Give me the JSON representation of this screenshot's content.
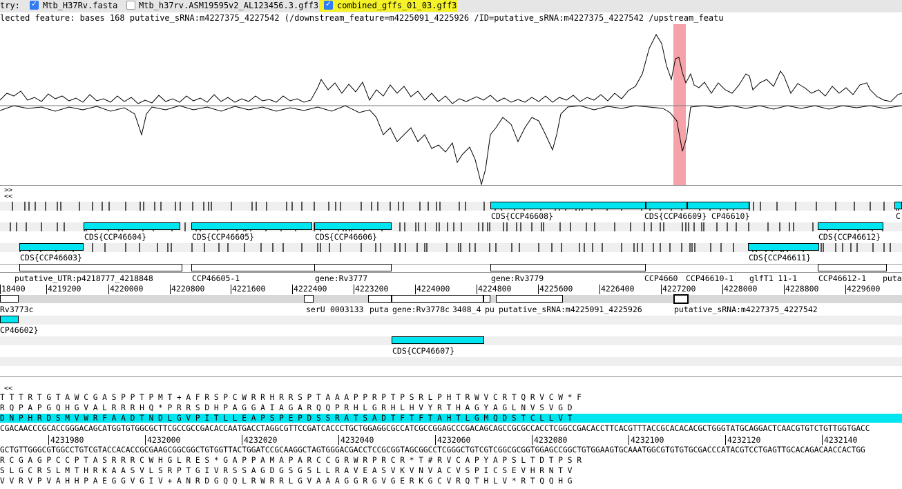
{
  "entry_bar": {
    "prefix": "try:",
    "entries": [
      {
        "label": "Mtb_H37Rv.fasta",
        "checked": true
      },
      {
        "label": "Mtb_h37rv.ASM19595v2_AL123456.3.gff3",
        "checked": false
      },
      {
        "label": "combined_gffs_01_03.gff3",
        "checked": true
      }
    ]
  },
  "selected_feature_text": "lected feature:  bases 168  putative_sRNA:m4227375_4227542  (/downstream_feature=m4225091_4225926 /ID=putative_sRNA:m4227375_4227542 /upstream_featu",
  "nav": {
    "forward": ">>",
    "back": "<<",
    "back2": "<<"
  },
  "feature_labels": {
    "ccp46608": "CDS{CCP46608}",
    "ccp46609": "CDS{CCP46609}",
    "ccp46610": "CP46610}",
    "ccp46604": "CDS{CCP46604}",
    "ccp46605": "CDS{CCP46605}",
    "ccp46606": "CDS{CCP46606}",
    "ccp46612": "CDS{CCP46612}",
    "ccp46603": "CDS{CCP46603}",
    "ccp46611": "CDS{CCP46611}",
    "edge_c": "C",
    "utr": "putative_UTR:p4218777_4218848",
    "ccp46605_1": "CCP46605-1",
    "rv3777": "gene:Rv3777",
    "rv3779": "gene:Rv3779",
    "ccp4660x": "CCP4660",
    "ccp46610_1": "CCP46610-1",
    "glft1": "glfT1 11-1",
    "ccp46612_1": "CCP46612-1",
    "puta_edge": "puta",
    "rv3773c": "Rv3773c",
    "seru": "serU",
    "s3133": "0003133",
    "puta2": "puta",
    "rv3778c": "gene:Rv3778c",
    "s408": "3408_4",
    "pu": "pu",
    "srna1": "putative_sRNA:m4225091_4225926",
    "srna2": "putative_sRNA:m4227375_4227542",
    "ccp46602": "CP46602}",
    "ccp46607": "CDS{CCP46607}"
  },
  "ruler": [
    "18400",
    "4219200",
    "4220000",
    "4220800",
    "4221600",
    "4222400",
    "4223200",
    "4224000",
    "4224800",
    "4225600",
    "4226400",
    "4227200",
    "4228000",
    "4228800",
    "4229600"
  ],
  "sequence": {
    "frame1": "T  T  T  R  T  G  T  A  W  C  G  A  S  P  P  T  P  M  T  +  A  F  R  S  P  C  W  R  R  H  R  R  S  P  T  A  A  A  P  P  R  P  T  P  S  R  L  P  H  T  R  W  V  C  R  T  Q  R  V  C  W  *  F",
    "frame2": " R  Q  P  A  P  G  Q  H  G  V  A  L  R  R  R  H  Q  *  P  R  R  S  D  H  P  A  G  G  A  I  A  G  A  R  Q  Q  P  R  H  L  G  R  H  L  H  V  Y  R  T  H  A  G  Y  A  G  L  N  V  S  V  G  D",
    "frame3": "  D  N  P  H  R  D  S  M  V  W  R  F  A  A  D  T  N  D  L  G  V  P  I  T  L  L  E  A  P  S  P  E  P  D  S  S  R  A  T  S  A  D  T  F  T  F  T  A  H  T  L  G  M  Q  D  S  T  C  L  L  V  T",
    "dna_fwd": "CGACAACCCGCACCGGGACAGCATGGTGTGGCGCTTCGCCGCCGACACCAATGACCTAGGCGTTCCGATCACCCTGCTGGAGGCGCCATCGCCGGAGCCCGACAGCAGCCGCGCCACCTCGGCCGACACCTTCACGTTTACCGCACACACGCTGGGTATGCAGGACTCAACGTGTCTGTTGGTGACC",
    "dna_rev": "GCTGTTGGGCGTGGCCTGTCGTACCACACCGCGAAGCGGCGGCTGTGGTTACTGGATCCGCAAGGCTAGTGGGACGACCTCCGCGGTAGCGGCCTCGGGCTGTCGTCGGCGCGGTGGAGCCGGCTGTGGAAGTGCAAATGGCGTGTGTGCGACCCATACGTCCTGAGTTGCACAGACAACCACTGG",
    "ruler": [
      "4231980",
      "4232000",
      "4232020",
      "4232040",
      "4232060",
      "4232080",
      "4232100",
      "4232120",
      "4232140"
    ],
    "frame4": "R  C  G  A  G  P  C  C  P  T  A  S  R  R  R  C  W  H  G  L  R  E  S  *  G  A  P  P  A  M  A  P  A  R  C  C  G  R  W  R  P  R  C  R  *  T  #  R  V  C  A  P  Y  A  P  S  L  T  D  T  P  S  R",
    "frame5": " S  L  G  C  R  S  L  M  T  H  R  K  A  A  S  V  L  S  R  P  T  G  I  V  R  S  S  A  G  D  G  S  G  S  L  L  R  A  V  E  A  S  V  K  V  N  V  A  C  V  S  P  I  C  S  E  V  H  R  N  T  V",
    "frame6": "  V  V  R  V  P  V  A  H  H  P  A  E  G  G  V  G  I  V  +  A  N  R  D  G  Q  Q  L  R  W  R  R  L  G  V  A  A  A  G  G  R  G  V  G  E  R  K  G  C  V  R  Q  T  H  L  V  *  R  T  Q  Q  H  G"
  },
  "colors": {
    "cds": "#00e5f0",
    "selection": "#f5a3a8",
    "highlight_tab": "#f5f22a",
    "track": "#efefef"
  }
}
